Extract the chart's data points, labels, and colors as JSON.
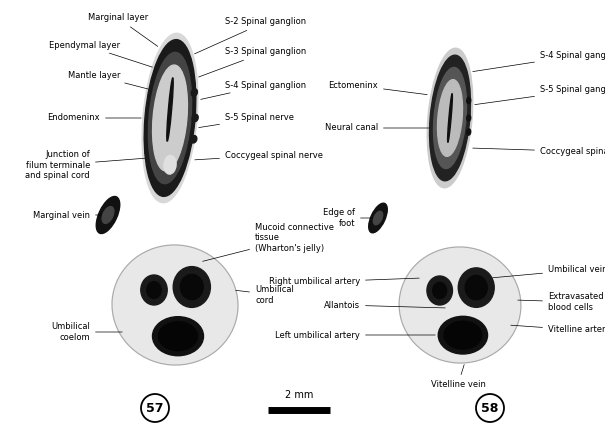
{
  "bg_color": "#ffffff",
  "fig_width": 6.05,
  "fig_height": 4.33,
  "dpi": 100,
  "label57": "57",
  "label58": "58",
  "scalebar_label": "2 mm",
  "fontsize_labels": 6.0,
  "fontsize_fig_numbers": 9
}
